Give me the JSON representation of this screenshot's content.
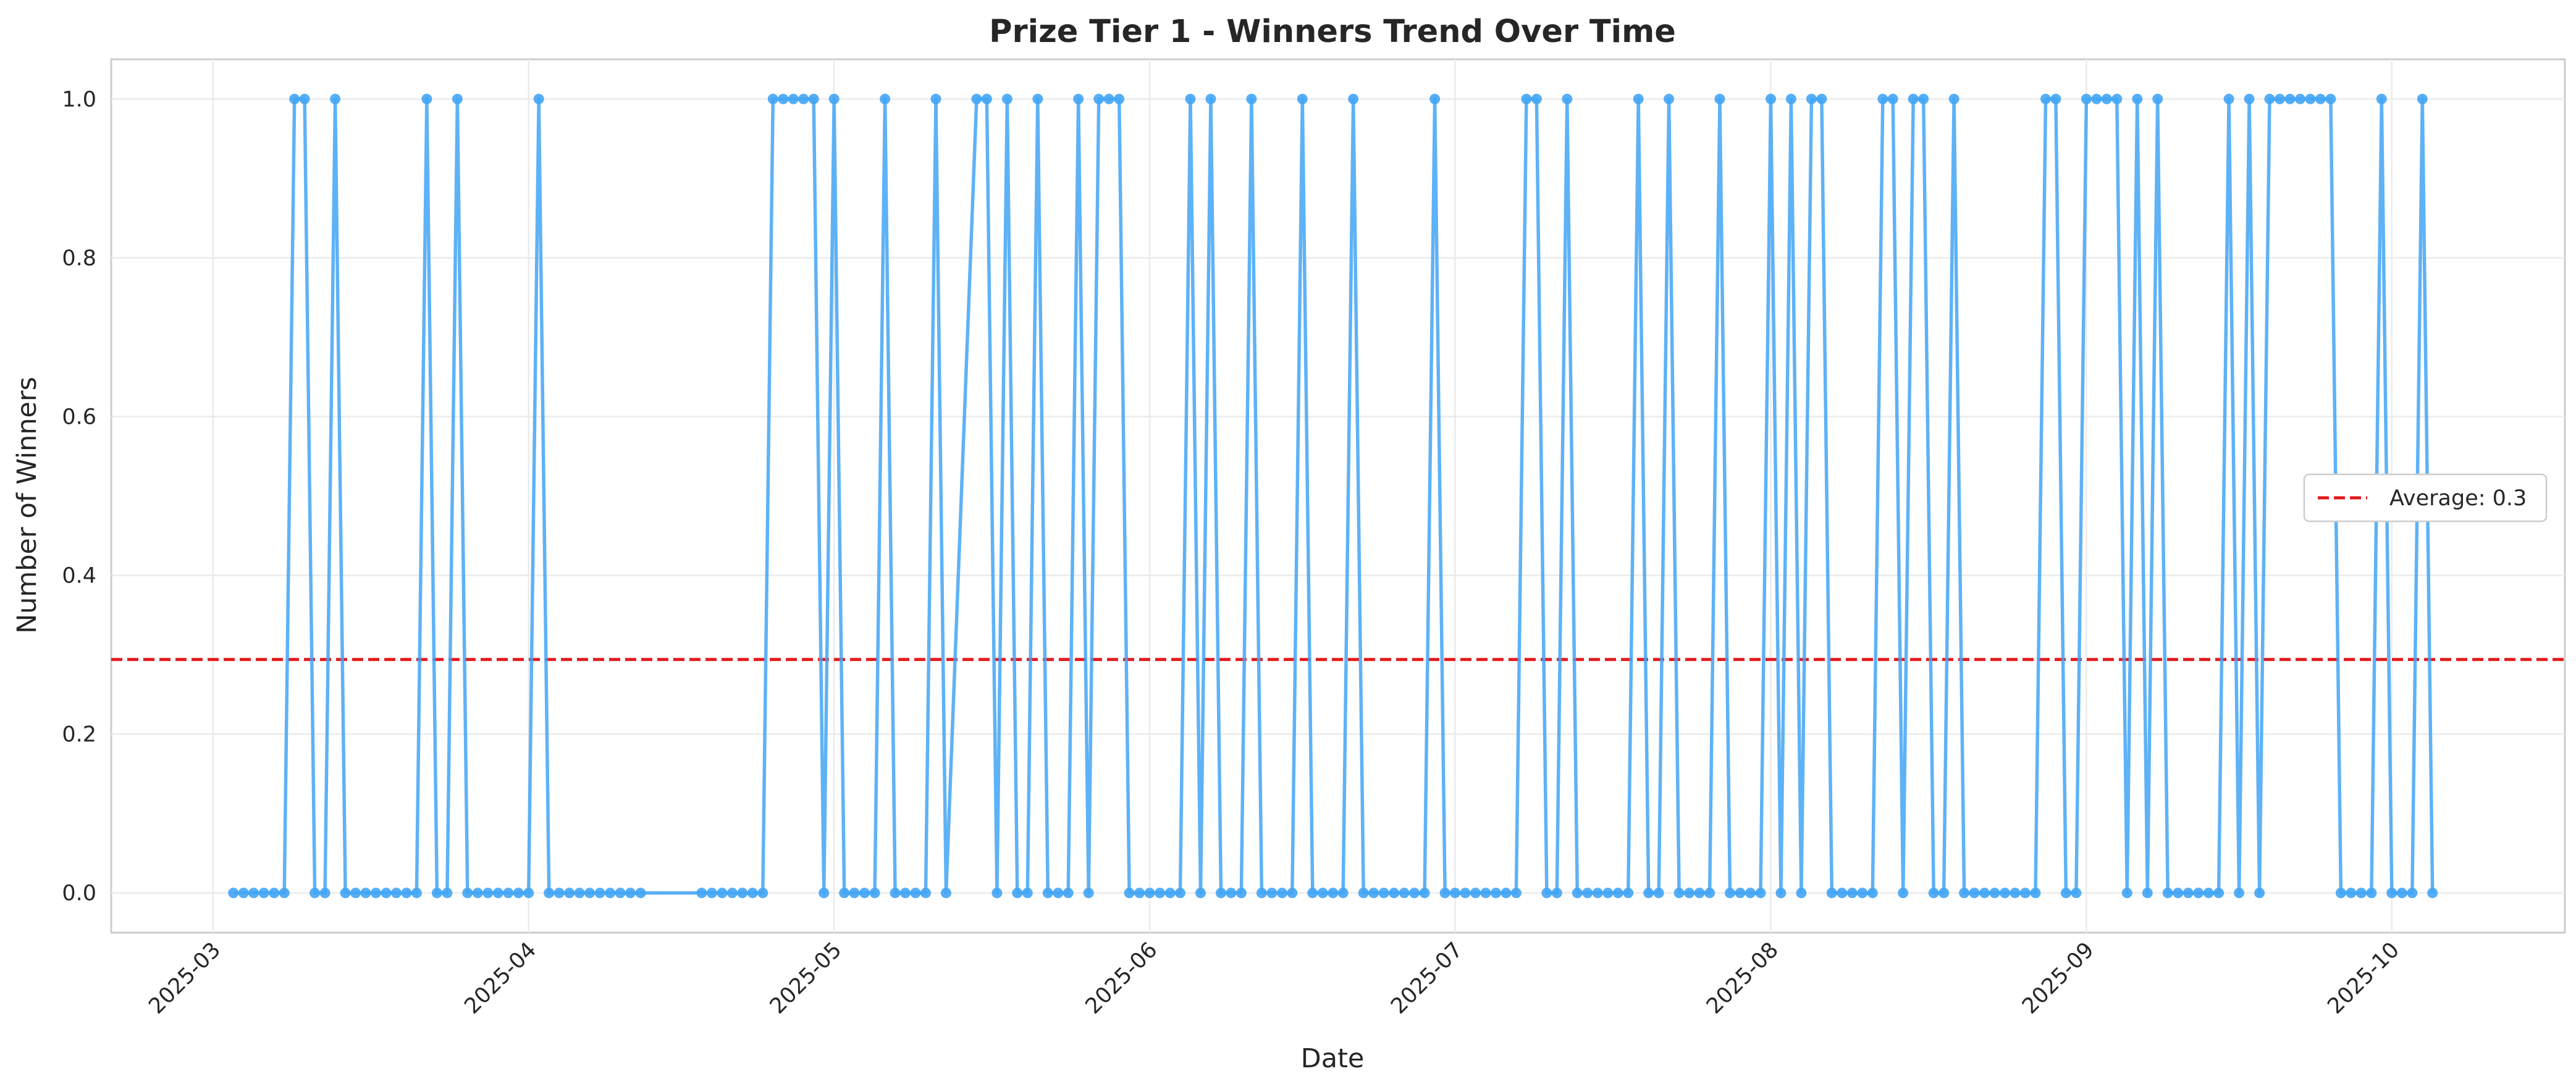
{
  "chart_data": {
    "type": "line",
    "title": "Prize Tier 1 - Winners Trend Over Time",
    "xlabel": "Date",
    "ylabel": "Number of Winners",
    "ylim": [
      -0.05,
      1.05
    ],
    "xlim": [
      "2025-02-19",
      "2025-10-18"
    ],
    "y_ticks": [
      "0.0",
      "0.2",
      "0.4",
      "0.6",
      "0.8",
      "1.0"
    ],
    "x_ticks": [
      "2025-03",
      "2025-04",
      "2025-05",
      "2025-06",
      "2025-07",
      "2025-08",
      "2025-09",
      "2025-10"
    ],
    "grid": true,
    "legend_position": "center-right",
    "series": [
      {
        "name": "",
        "color": "#42a5f5",
        "points": [
          [
            "2025-03-03",
            0
          ],
          [
            "2025-03-04",
            0
          ],
          [
            "2025-03-05",
            0
          ],
          [
            "2025-03-06",
            0
          ],
          [
            "2025-03-07",
            0
          ],
          [
            "2025-03-08",
            0
          ],
          [
            "2025-03-09",
            1
          ],
          [
            "2025-03-10",
            1
          ],
          [
            "2025-03-11",
            0
          ],
          [
            "2025-03-12",
            0
          ],
          [
            "2025-03-13",
            1
          ],
          [
            "2025-03-14",
            0
          ],
          [
            "2025-03-15",
            0
          ],
          [
            "2025-03-16",
            0
          ],
          [
            "2025-03-17",
            0
          ],
          [
            "2025-03-18",
            0
          ],
          [
            "2025-03-19",
            0
          ],
          [
            "2025-03-20",
            0
          ],
          [
            "2025-03-21",
            0
          ],
          [
            "2025-03-22",
            1
          ],
          [
            "2025-03-23",
            0
          ],
          [
            "2025-03-24",
            0
          ],
          [
            "2025-03-25",
            1
          ],
          [
            "2025-03-26",
            0
          ],
          [
            "2025-03-27",
            0
          ],
          [
            "2025-03-28",
            0
          ],
          [
            "2025-03-29",
            0
          ],
          [
            "2025-03-30",
            0
          ],
          [
            "2025-03-31",
            0
          ],
          [
            "2025-04-01",
            0
          ],
          [
            "2025-04-02",
            1
          ],
          [
            "2025-04-03",
            0
          ],
          [
            "2025-04-04",
            0
          ],
          [
            "2025-04-05",
            0
          ],
          [
            "2025-04-06",
            0
          ],
          [
            "2025-04-07",
            0
          ],
          [
            "2025-04-08",
            0
          ],
          [
            "2025-04-09",
            0
          ],
          [
            "2025-04-10",
            0
          ],
          [
            "2025-04-11",
            0
          ],
          [
            "2025-04-12",
            0
          ],
          [
            "2025-04-18",
            0
          ],
          [
            "2025-04-19",
            0
          ],
          [
            "2025-04-20",
            0
          ],
          [
            "2025-04-21",
            0
          ],
          [
            "2025-04-22",
            0
          ],
          [
            "2025-04-23",
            0
          ],
          [
            "2025-04-24",
            0
          ],
          [
            "2025-04-25",
            1
          ],
          [
            "2025-04-26",
            1
          ],
          [
            "2025-04-27",
            1
          ],
          [
            "2025-04-28",
            1
          ],
          [
            "2025-04-29",
            1
          ],
          [
            "2025-04-30",
            0
          ],
          [
            "2025-05-01",
            1
          ],
          [
            "2025-05-02",
            0
          ],
          [
            "2025-05-03",
            0
          ],
          [
            "2025-05-04",
            0
          ],
          [
            "2025-05-05",
            0
          ],
          [
            "2025-05-06",
            1
          ],
          [
            "2025-05-07",
            0
          ],
          [
            "2025-05-08",
            0
          ],
          [
            "2025-05-09",
            0
          ],
          [
            "2025-05-10",
            0
          ],
          [
            "2025-05-11",
            1
          ],
          [
            "2025-05-12",
            0
          ],
          [
            "2025-05-15",
            1
          ],
          [
            "2025-05-16",
            1
          ],
          [
            "2025-05-17",
            0
          ],
          [
            "2025-05-18",
            1
          ],
          [
            "2025-05-19",
            0
          ],
          [
            "2025-05-20",
            0
          ],
          [
            "2025-05-21",
            1
          ],
          [
            "2025-05-22",
            0
          ],
          [
            "2025-05-23",
            0
          ],
          [
            "2025-05-24",
            0
          ],
          [
            "2025-05-25",
            1
          ],
          [
            "2025-05-26",
            0
          ],
          [
            "2025-05-27",
            1
          ],
          [
            "2025-05-28",
            1
          ],
          [
            "2025-05-29",
            1
          ],
          [
            "2025-05-30",
            0
          ],
          [
            "2025-05-31",
            0
          ],
          [
            "2025-06-01",
            0
          ],
          [
            "2025-06-02",
            0
          ],
          [
            "2025-06-03",
            0
          ],
          [
            "2025-06-04",
            0
          ],
          [
            "2025-06-05",
            1
          ],
          [
            "2025-06-06",
            0
          ],
          [
            "2025-06-07",
            1
          ],
          [
            "2025-06-08",
            0
          ],
          [
            "2025-06-09",
            0
          ],
          [
            "2025-06-10",
            0
          ],
          [
            "2025-06-11",
            1
          ],
          [
            "2025-06-12",
            0
          ],
          [
            "2025-06-13",
            0
          ],
          [
            "2025-06-14",
            0
          ],
          [
            "2025-06-15",
            0
          ],
          [
            "2025-06-16",
            1
          ],
          [
            "2025-06-17",
            0
          ],
          [
            "2025-06-18",
            0
          ],
          [
            "2025-06-19",
            0
          ],
          [
            "2025-06-20",
            0
          ],
          [
            "2025-06-21",
            1
          ],
          [
            "2025-06-22",
            0
          ],
          [
            "2025-06-23",
            0
          ],
          [
            "2025-06-24",
            0
          ],
          [
            "2025-06-25",
            0
          ],
          [
            "2025-06-26",
            0
          ],
          [
            "2025-06-27",
            0
          ],
          [
            "2025-06-28",
            0
          ],
          [
            "2025-06-29",
            1
          ],
          [
            "2025-06-30",
            0
          ],
          [
            "2025-07-01",
            0
          ],
          [
            "2025-07-02",
            0
          ],
          [
            "2025-07-03",
            0
          ],
          [
            "2025-07-04",
            0
          ],
          [
            "2025-07-05",
            0
          ],
          [
            "2025-07-06",
            0
          ],
          [
            "2025-07-07",
            0
          ],
          [
            "2025-07-08",
            1
          ],
          [
            "2025-07-09",
            1
          ],
          [
            "2025-07-10",
            0
          ],
          [
            "2025-07-11",
            0
          ],
          [
            "2025-07-12",
            1
          ],
          [
            "2025-07-13",
            0
          ],
          [
            "2025-07-14",
            0
          ],
          [
            "2025-07-15",
            0
          ],
          [
            "2025-07-16",
            0
          ],
          [
            "2025-07-17",
            0
          ],
          [
            "2025-07-18",
            0
          ],
          [
            "2025-07-19",
            1
          ],
          [
            "2025-07-20",
            0
          ],
          [
            "2025-07-21",
            0
          ],
          [
            "2025-07-22",
            1
          ],
          [
            "2025-07-23",
            0
          ],
          [
            "2025-07-24",
            0
          ],
          [
            "2025-07-25",
            0
          ],
          [
            "2025-07-26",
            0
          ],
          [
            "2025-07-27",
            1
          ],
          [
            "2025-07-28",
            0
          ],
          [
            "2025-07-29",
            0
          ],
          [
            "2025-07-30",
            0
          ],
          [
            "2025-07-31",
            0
          ],
          [
            "2025-08-01",
            1
          ],
          [
            "2025-08-02",
            0
          ],
          [
            "2025-08-03",
            1
          ],
          [
            "2025-08-04",
            0
          ],
          [
            "2025-08-05",
            1
          ],
          [
            "2025-08-06",
            1
          ],
          [
            "2025-08-07",
            0
          ],
          [
            "2025-08-08",
            0
          ],
          [
            "2025-08-09",
            0
          ],
          [
            "2025-08-10",
            0
          ],
          [
            "2025-08-11",
            0
          ],
          [
            "2025-08-12",
            1
          ],
          [
            "2025-08-13",
            1
          ],
          [
            "2025-08-14",
            0
          ],
          [
            "2025-08-15",
            1
          ],
          [
            "2025-08-16",
            1
          ],
          [
            "2025-08-17",
            0
          ],
          [
            "2025-08-18",
            0
          ],
          [
            "2025-08-19",
            1
          ],
          [
            "2025-08-20",
            0
          ],
          [
            "2025-08-21",
            0
          ],
          [
            "2025-08-22",
            0
          ],
          [
            "2025-08-23",
            0
          ],
          [
            "2025-08-24",
            0
          ],
          [
            "2025-08-25",
            0
          ],
          [
            "2025-08-26",
            0
          ],
          [
            "2025-08-27",
            0
          ],
          [
            "2025-08-28",
            1
          ],
          [
            "2025-08-29",
            1
          ],
          [
            "2025-08-30",
            0
          ],
          [
            "2025-08-31",
            0
          ],
          [
            "2025-09-01",
            1
          ],
          [
            "2025-09-02",
            1
          ],
          [
            "2025-09-03",
            1
          ],
          [
            "2025-09-04",
            1
          ],
          [
            "2025-09-05",
            0
          ],
          [
            "2025-09-06",
            1
          ],
          [
            "2025-09-07",
            0
          ],
          [
            "2025-09-08",
            1
          ],
          [
            "2025-09-09",
            0
          ],
          [
            "2025-09-10",
            0
          ],
          [
            "2025-09-11",
            0
          ],
          [
            "2025-09-12",
            0
          ],
          [
            "2025-09-13",
            0
          ],
          [
            "2025-09-14",
            0
          ],
          [
            "2025-09-15",
            1
          ],
          [
            "2025-09-16",
            0
          ],
          [
            "2025-09-17",
            1
          ],
          [
            "2025-09-18",
            0
          ],
          [
            "2025-09-19",
            1
          ],
          [
            "2025-09-20",
            1
          ],
          [
            "2025-09-21",
            1
          ],
          [
            "2025-09-22",
            1
          ],
          [
            "2025-09-23",
            1
          ],
          [
            "2025-09-24",
            1
          ],
          [
            "2025-09-25",
            1
          ],
          [
            "2025-09-26",
            0
          ],
          [
            "2025-09-27",
            0
          ],
          [
            "2025-09-28",
            0
          ],
          [
            "2025-09-29",
            0
          ],
          [
            "2025-09-30",
            1
          ],
          [
            "2025-10-01",
            0
          ],
          [
            "2025-10-02",
            0
          ],
          [
            "2025-10-03",
            0
          ],
          [
            "2025-10-04",
            1
          ],
          [
            "2025-10-05",
            0
          ]
        ]
      }
    ],
    "average_line": {
      "value": 0.294,
      "label": "Average: 0.3",
      "color": "#e31a1c",
      "style": "dashed"
    }
  }
}
